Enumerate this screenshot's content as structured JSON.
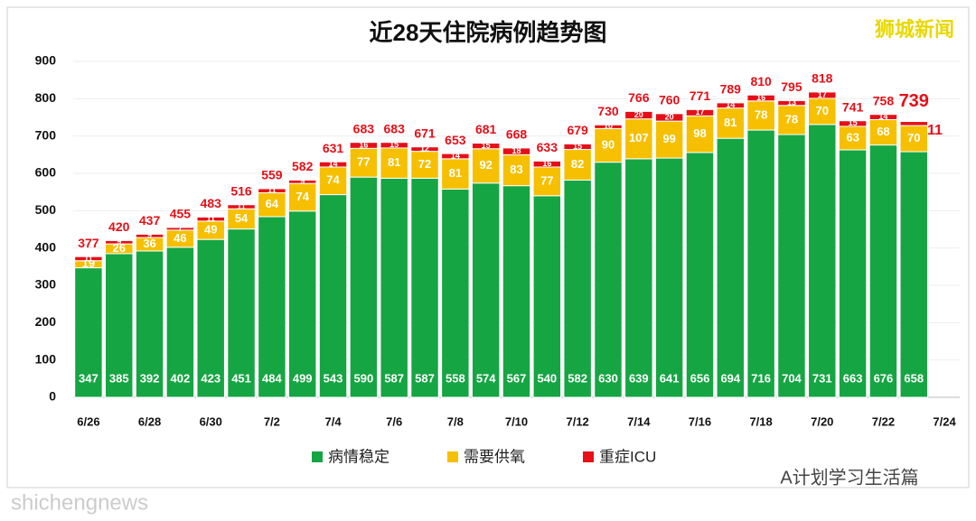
{
  "chart_data": {
    "type": "stacked_bar",
    "title": "近28天住院病例趋势图",
    "categories": [
      "6/26",
      null,
      "6/28",
      null,
      "6/30",
      null,
      "7/2",
      null,
      "7/4",
      null,
      "7/6",
      null,
      "7/8",
      null,
      "7/10",
      null,
      "7/12",
      null,
      "7/14",
      null,
      "7/16",
      null,
      "7/18",
      null,
      "7/20",
      null,
      "7/22",
      null,
      "7/24"
    ],
    "series": [
      {
        "name": "病情稳定",
        "color": "#16a543",
        "values": [
          347,
          385,
          392,
          402,
          423,
          451,
          484,
          499,
          543,
          590,
          587,
          587,
          558,
          574,
          567,
          540,
          582,
          630,
          639,
          641,
          656,
          694,
          716,
          704,
          731,
          663,
          676,
          658,
          null
        ]
      },
      {
        "name": "需要供氧",
        "color": "#f6c000",
        "values": [
          19,
          26,
          36,
          46,
          49,
          54,
          64,
          74,
          74,
          77,
          81,
          72,
          81,
          92,
          83,
          77,
          82,
          90,
          107,
          99,
          98,
          81,
          78,
          78,
          70,
          63,
          68,
          70,
          null
        ]
      },
      {
        "name": "重症ICU",
        "color": "#e60f18",
        "values": [
          11,
          9,
          9,
          7,
          11,
          11,
          11,
          9,
          14,
          16,
          15,
          12,
          14,
          15,
          18,
          16,
          15,
          10,
          20,
          20,
          17,
          14,
          16,
          13,
          17,
          15,
          14,
          11,
          null
        ]
      }
    ],
    "totals": [
      377,
      420,
      437,
      455,
      483,
      516,
      559,
      582,
      631,
      683,
      683,
      671,
      653,
      681,
      668,
      633,
      679,
      730,
      766,
      760,
      771,
      789,
      810,
      795,
      818,
      741,
      758,
      739,
      null
    ],
    "ylim": [
      0,
      900
    ],
    "yticks": [
      0,
      100,
      200,
      300,
      400,
      500,
      600,
      700,
      800,
      900
    ],
    "grid": true,
    "watermarks": [
      "狮城新闻",
      "A计划学习生活篇",
      "shichengnews"
    ]
  }
}
